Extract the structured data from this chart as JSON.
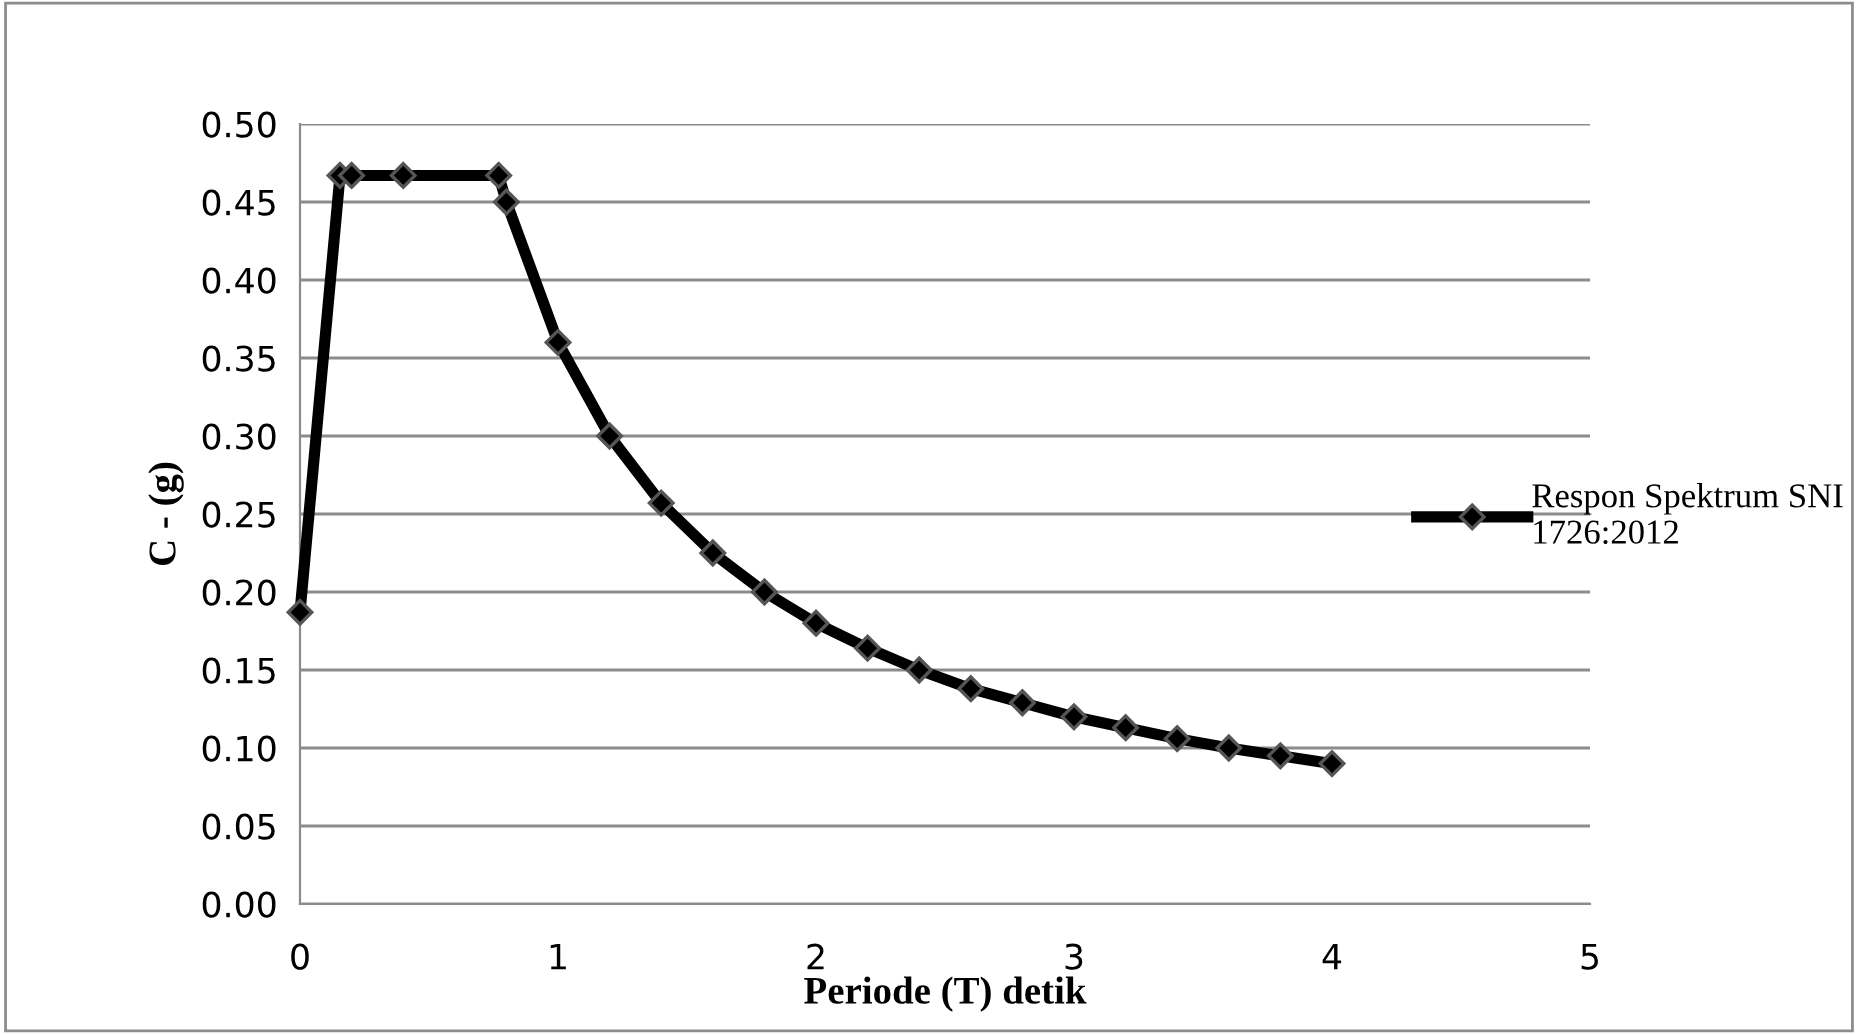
{
  "chart_data": {
    "type": "line",
    "xlabel": "Periode (T) detik",
    "ylabel": "C - (g)",
    "x": [
      0,
      0.155,
      0.2,
      0.4,
      0.77,
      0.8,
      1.0,
      1.2,
      1.4,
      1.6,
      1.8,
      2.0,
      2.2,
      2.4,
      2.6,
      2.8,
      3.0,
      3.2,
      3.4,
      3.6,
      3.8,
      4.0
    ],
    "series": [
      {
        "name": "Respon Spektrum SNI 1726:2012",
        "color": "#000000",
        "values": [
          0.187,
          0.467,
          0.467,
          0.467,
          0.467,
          0.45,
          0.36,
          0.3,
          0.257,
          0.225,
          0.2,
          0.18,
          0.164,
          0.15,
          0.138,
          0.129,
          0.12,
          0.113,
          0.106,
          0.1,
          0.095,
          0.09
        ]
      }
    ],
    "xlim": [
      0,
      5
    ],
    "xticks": [
      0,
      1,
      2,
      3,
      4,
      5
    ],
    "ylim": [
      0,
      0.5
    ],
    "yticks": [
      {
        "value": 0,
        "label": "0.00"
      },
      {
        "value": 0.05,
        "label": "0.05"
      },
      {
        "value": 0.1,
        "label": "0.10"
      },
      {
        "value": 0.15,
        "label": "0.15"
      },
      {
        "value": 0.2,
        "label": "0.20"
      },
      {
        "value": 0.25,
        "label": "0.25"
      },
      {
        "value": 0.3,
        "label": "0.30"
      },
      {
        "value": 0.35,
        "label": "0.35"
      },
      {
        "value": 0.4,
        "label": "0.40"
      },
      {
        "value": 0.45,
        "label": "0.45"
      },
      {
        "value": 0.5,
        "label": "0.50"
      }
    ],
    "grid": "y",
    "legend": "right",
    "marker": "diamond",
    "line_style": "solid"
  }
}
